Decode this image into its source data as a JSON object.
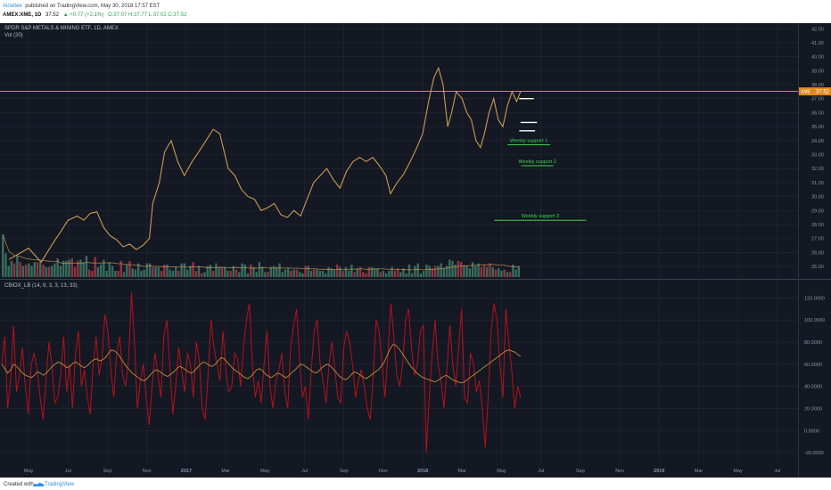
{
  "header": {
    "author": "Airlatlee",
    "published_text": "published on TradingView.com, May 30, 2018 17:57 EST",
    "ticker_line": "AMEX:XME, 1D",
    "last_value": "37.52",
    "change": "▲ +0.77 (+2.1%)",
    "ohlc": "O:37.07 H:37.77 L:37.02 C:37.52"
  },
  "footer": {
    "created_with": "Created with",
    "brand": "TradingView"
  },
  "colors": {
    "background": "#141823",
    "grid": "#232836",
    "price": "#c99a52",
    "vol_up": "#3e7a66",
    "vol_down": "#a83844",
    "osc": "#b4121b",
    "osc_signal": "#c58a3a",
    "support": "#ffffff",
    "support_label": "#3fd24b",
    "price_line": "#e0a53a"
  },
  "chart_data": [
    {
      "type": "line",
      "title": "SPDR S&P METALS & MINING ETF, 1D, AMEX",
      "legend": [
        "Vol (20)"
      ],
      "x_ticks": [
        "May",
        "Jul",
        "Sep",
        "Nov",
        "2017",
        "Mar",
        "May",
        "Jul",
        "Sep",
        "Nov",
        "2018",
        "Mar",
        "May",
        "Jul",
        "Sep",
        "Nov",
        "2019",
        "Mar",
        "May",
        "Jul"
      ],
      "y_ticks": [
        "42.00",
        "41.00",
        "40.00",
        "39.00",
        "38.00",
        "37.00",
        "36.00",
        "35.00",
        "34.00",
        "33.00",
        "32.00",
        "31.00",
        "30.00",
        "29.00",
        "28.00",
        "27.00",
        "26.00",
        "25.00"
      ],
      "ylim": [
        24.3,
        42.4
      ],
      "current_price": 37.52,
      "current_price_label": "37.52",
      "price_tag": "XME",
      "price_series": [
        [
          "2016-04-01",
          25.5
        ],
        [
          "2016-05-01",
          26.3
        ],
        [
          "2016-05-20",
          25.3
        ],
        [
          "2016-06-10",
          26.8
        ],
        [
          "2016-06-20",
          27.5
        ],
        [
          "2016-07-01",
          28.3
        ],
        [
          "2016-07-15",
          28.6
        ],
        [
          "2016-07-25",
          28.3
        ],
        [
          "2016-08-05",
          28.8
        ],
        [
          "2016-08-15",
          28.9
        ],
        [
          "2016-08-25",
          27.8
        ],
        [
          "2016-09-05",
          27.2
        ],
        [
          "2016-09-15",
          26.9
        ],
        [
          "2016-09-25",
          26.4
        ],
        [
          "2016-10-05",
          26.6
        ],
        [
          "2016-10-15",
          26.2
        ],
        [
          "2016-10-25",
          26.5
        ],
        [
          "2016-11-05",
          27.0
        ],
        [
          "2016-11-10",
          29.5
        ],
        [
          "2016-11-20",
          31.0
        ],
        [
          "2016-11-28",
          33.2
        ],
        [
          "2016-12-08",
          34.0
        ],
        [
          "2016-12-18",
          32.5
        ],
        [
          "2016-12-28",
          31.5
        ],
        [
          "2017-01-10",
          32.5
        ],
        [
          "2017-01-20",
          33.2
        ],
        [
          "2017-02-01",
          34.0
        ],
        [
          "2017-02-12",
          34.8
        ],
        [
          "2017-02-22",
          34.5
        ],
        [
          "2017-03-05",
          32.0
        ],
        [
          "2017-03-15",
          31.5
        ],
        [
          "2017-03-25",
          30.5
        ],
        [
          "2017-04-05",
          30.0
        ],
        [
          "2017-04-15",
          29.8
        ],
        [
          "2017-04-25",
          29.0
        ],
        [
          "2017-05-05",
          29.2
        ],
        [
          "2017-05-15",
          29.5
        ],
        [
          "2017-05-25",
          28.7
        ],
        [
          "2017-06-05",
          28.5
        ],
        [
          "2017-06-15",
          29.0
        ],
        [
          "2017-06-25",
          28.6
        ],
        [
          "2017-07-05",
          29.8
        ],
        [
          "2017-07-15",
          31.0
        ],
        [
          "2017-07-25",
          31.5
        ],
        [
          "2017-08-05",
          32.0
        ],
        [
          "2017-08-15",
          31.2
        ],
        [
          "2017-08-25",
          30.6
        ],
        [
          "2017-09-05",
          31.8
        ],
        [
          "2017-09-15",
          32.5
        ],
        [
          "2017-09-25",
          32.8
        ],
        [
          "2017-10-05",
          32.5
        ],
        [
          "2017-10-15",
          32.8
        ],
        [
          "2017-10-25",
          32.2
        ],
        [
          "2017-11-05",
          31.5
        ],
        [
          "2017-11-12",
          30.2
        ],
        [
          "2017-11-22",
          31.0
        ],
        [
          "2017-12-02",
          31.6
        ],
        [
          "2017-12-12",
          32.5
        ],
        [
          "2017-12-22",
          33.5
        ],
        [
          "2018-01-01",
          34.5
        ],
        [
          "2018-01-10",
          36.8
        ],
        [
          "2018-01-18",
          38.5
        ],
        [
          "2018-01-25",
          39.2
        ],
        [
          "2018-02-02",
          38.0
        ],
        [
          "2018-02-09",
          35.0
        ],
        [
          "2018-02-15",
          36.0
        ],
        [
          "2018-02-22",
          37.5
        ],
        [
          "2018-03-01",
          37.0
        ],
        [
          "2018-03-08",
          36.0
        ],
        [
          "2018-03-15",
          35.5
        ],
        [
          "2018-03-22",
          34.0
        ],
        [
          "2018-03-29",
          33.5
        ],
        [
          "2018-04-05",
          34.5
        ],
        [
          "2018-04-12",
          36.0
        ],
        [
          "2018-04-19",
          37.0
        ],
        [
          "2018-04-26",
          35.5
        ],
        [
          "2018-05-03",
          35.0
        ],
        [
          "2018-05-10",
          36.5
        ],
        [
          "2018-05-17",
          37.5
        ],
        [
          "2018-05-24",
          36.8
        ],
        [
          "2018-05-30",
          37.52
        ]
      ],
      "volume": {
        "ylim": [
          0,
          40
        ],
        "values": [
          34,
          19,
          9,
          13,
          11,
          17,
          12,
          9,
          10,
          11,
          9,
          12,
          12,
          12,
          10,
          8,
          8,
          9,
          11,
          15,
          9,
          13,
          13,
          14,
          15,
          8,
          13,
          14,
          12,
          17,
          6,
          5,
          16,
          8,
          10,
          14,
          5,
          12,
          9,
          5,
          5,
          13,
          4,
          10,
          13,
          7,
          6,
          11,
          5,
          6,
          11,
          11,
          8,
          8,
          8,
          5,
          10,
          10,
          6,
          5,
          8,
          5,
          11,
          11,
          6,
          9,
          12,
          5,
          9,
          3,
          4,
          9,
          10,
          5,
          11,
          8,
          8,
          8,
          5,
          5,
          9,
          6,
          4,
          11,
          10,
          3,
          10,
          8,
          4,
          12,
          8,
          4,
          4,
          8,
          9,
          8,
          11,
          4,
          6,
          7,
          5,
          6,
          6,
          4,
          3,
          9,
          9,
          5,
          6,
          6,
          5,
          5,
          3,
          8,
          7,
          6,
          10,
          8,
          5,
          8,
          5,
          10,
          4,
          7,
          8,
          4,
          3,
          8,
          8,
          7,
          7,
          4,
          5,
          3,
          5,
          8,
          5,
          7,
          4,
          7,
          3,
          10,
          3,
          9,
          11,
          3,
          5,
          10,
          9,
          7,
          9,
          9,
          11,
          7,
          9,
          14,
          13,
          10,
          13,
          12,
          9,
          9,
          7,
          12,
          9,
          11,
          8,
          10,
          8,
          11,
          8,
          6,
          7,
          5,
          6,
          4,
          4,
          10,
          6,
          9
        ]
      },
      "support_levels": [
        {
          "label": "",
          "value": 37.0,
          "from": "2018-05-28",
          "to": "2018-06-20"
        },
        {
          "label": "",
          "value": 35.3,
          "from": "2018-05-30",
          "to": "2018-06-25"
        },
        {
          "label": "",
          "value": 34.7,
          "from": "2018-05-28",
          "to": "2018-06-22"
        },
        {
          "label": "Weekly support 1",
          "value": 33.7,
          "from": "2018-05-10",
          "to": "2018-07-15"
        },
        {
          "label": "Weekly support 2",
          "value": 32.2,
          "from": "2018-06-01",
          "to": "2018-07-20"
        },
        {
          "label": "Weekly support 3",
          "value": 28.3,
          "from": "2018-04-20",
          "to": "2018-09-10"
        }
      ]
    },
    {
      "type": "line",
      "title": "CBIOX_LB (14, 9, 3, 3, 13, 33)",
      "y_ticks": [
        "120.0000",
        "100.0000",
        "80.0000",
        "60.0000",
        "40.0000",
        "20.0000",
        "0.0000",
        "-20.0000"
      ],
      "ylim": [
        -28,
        130
      ],
      "series": [
        {
          "name": "",
          "values": [
            60,
            85,
            20,
            45,
            95,
            35,
            50,
            75,
            40,
            15,
            60,
            70,
            55,
            30,
            10,
            45,
            80,
            60,
            25,
            30,
            50,
            85,
            35,
            60,
            20,
            70,
            90,
            40,
            55,
            30,
            15,
            60,
            85,
            50,
            65,
            105,
            90,
            55,
            30,
            70,
            85,
            50,
            40,
            65,
            125,
            80,
            20,
            45,
            60,
            30,
            5,
            40,
            70,
            50,
            30,
            85,
            100,
            60,
            15,
            40,
            75,
            55,
            35,
            70,
            60,
            30,
            80,
            65,
            20,
            10,
            50,
            100,
            75,
            60,
            45,
            90,
            55,
            35,
            40,
            70,
            65,
            40,
            75,
            100,
            115,
            60,
            30,
            45,
            25,
            60,
            90,
            40,
            20,
            45,
            55,
            70,
            35,
            20,
            75,
            95,
            110,
            65,
            30,
            40,
            10,
            55,
            90,
            100,
            60,
            45,
            25,
            60,
            80,
            55,
            30,
            25,
            75,
            90,
            80,
            60,
            30,
            45,
            55,
            40,
            20,
            10,
            50,
            100,
            90,
            60,
            30,
            70,
            115,
            85,
            50,
            40,
            60,
            100,
            110,
            75,
            50,
            60,
            90,
            95,
            -20,
            30,
            70,
            100,
            60,
            45,
            20,
            55,
            95,
            60,
            40,
            75,
            110,
            30,
            25,
            70,
            60,
            35,
            45,
            20,
            -15,
            30,
            90,
            115,
            100,
            60,
            30,
            110,
            80,
            55,
            20,
            40,
            30
          ]
        },
        {
          "name": "",
          "values": [
            60,
            56,
            52,
            55,
            60,
            58,
            55,
            52,
            50,
            49,
            48,
            50,
            53,
            52,
            50,
            52,
            55,
            58,
            60,
            62,
            61,
            59,
            57,
            58,
            61,
            62,
            60,
            58,
            57,
            59,
            62,
            64,
            65,
            63,
            64,
            66,
            70,
            73,
            72,
            70,
            66,
            62,
            58,
            55,
            52,
            50,
            48,
            46,
            45,
            47,
            50,
            53,
            55,
            54,
            52,
            50,
            49,
            51,
            53,
            56,
            58,
            57,
            55,
            53,
            52,
            54,
            57,
            60,
            62,
            61,
            59,
            58,
            60,
            63,
            66,
            65,
            62,
            59,
            56,
            54,
            52,
            50,
            48,
            47,
            49,
            52,
            55,
            56,
            54,
            51,
            49,
            48,
            50,
            52,
            51,
            49,
            48,
            50,
            53,
            55,
            58,
            60,
            59,
            57,
            55,
            53,
            52,
            54,
            57,
            59,
            60,
            58,
            55,
            52,
            49,
            47,
            46,
            48,
            51,
            53,
            52,
            50,
            48,
            47,
            49,
            51,
            53,
            55,
            58,
            62,
            68,
            74,
            78,
            77,
            74,
            70,
            66,
            62,
            58,
            55,
            52,
            50,
            48,
            47,
            46,
            45,
            44,
            45,
            47,
            49,
            50,
            48,
            46,
            45,
            44,
            43,
            44,
            46,
            48,
            50,
            52,
            54,
            56,
            58,
            60,
            62,
            64,
            66,
            68,
            70,
            72,
            73,
            72,
            71,
            69,
            67
          ]
        }
      ]
    }
  ]
}
